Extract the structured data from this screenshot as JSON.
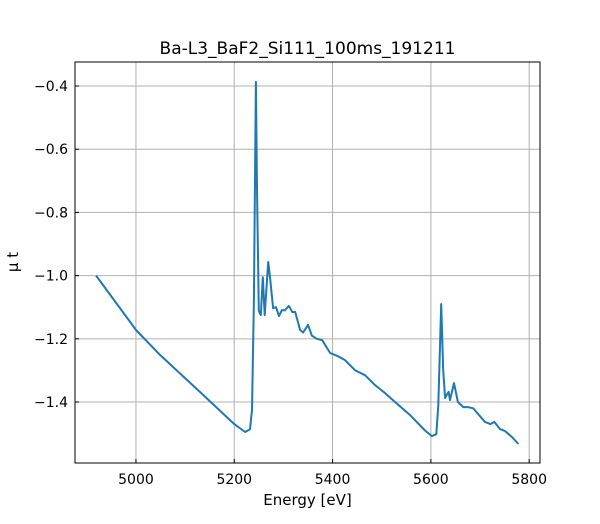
{
  "chart_data": {
    "type": "line",
    "title": "Ba-L3_BaF2_Si111_100ms_191211",
    "xlabel": "Energy [eV]",
    "ylabel": "μ t",
    "xlim": [
      4876,
      5822
    ],
    "ylim": [
      -1.593,
      -0.324
    ],
    "xticks": [
      5000,
      5200,
      5400,
      5600,
      5800
    ],
    "yticks": [
      -0.4,
      -0.6,
      -0.8,
      -1.0,
      -1.2,
      -1.4
    ],
    "xtick_labels": [
      "5000",
      "5200",
      "5400",
      "5600",
      "5800"
    ],
    "ytick_labels": [
      "−0.4",
      "−0.6",
      "−0.8",
      "−1.0",
      "−1.2",
      "−1.4"
    ],
    "grid": true,
    "color": "#1f77b4",
    "series": [
      {
        "name": "mu_t",
        "x": [
          4919,
          5000,
          5049,
          5130,
          5200,
          5222,
          5232,
          5236,
          5240,
          5244,
          5246,
          5250,
          5254,
          5258,
          5262,
          5269,
          5273,
          5279,
          5285,
          5291,
          5297,
          5303,
          5311,
          5318,
          5324,
          5334,
          5340,
          5350,
          5358,
          5368,
          5379,
          5395,
          5411,
          5425,
          5446,
          5466,
          5486,
          5507,
          5527,
          5557,
          5588,
          5602,
          5611,
          5615,
          5621,
          5625,
          5629,
          5636,
          5639,
          5647,
          5655,
          5666,
          5676,
          5686,
          5696,
          5710,
          5721,
          5729,
          5741,
          5751,
          5765,
          5778
        ],
        "y": [
          -1.0,
          -1.172,
          -1.251,
          -1.368,
          -1.47,
          -1.495,
          -1.486,
          -1.425,
          -1.077,
          -0.387,
          -0.7,
          -1.112,
          -1.125,
          -1.005,
          -1.125,
          -0.957,
          -1.008,
          -1.103,
          -1.1,
          -1.128,
          -1.109,
          -1.11,
          -1.096,
          -1.115,
          -1.115,
          -1.172,
          -1.18,
          -1.156,
          -1.19,
          -1.2,
          -1.204,
          -1.245,
          -1.255,
          -1.267,
          -1.3,
          -1.315,
          -1.346,
          -1.372,
          -1.4,
          -1.44,
          -1.49,
          -1.508,
          -1.502,
          -1.41,
          -1.09,
          -1.3,
          -1.387,
          -1.368,
          -1.394,
          -1.34,
          -1.4,
          -1.416,
          -1.416,
          -1.42,
          -1.438,
          -1.463,
          -1.47,
          -1.463,
          -1.486,
          -1.492,
          -1.511,
          -1.533
        ]
      }
    ]
  }
}
